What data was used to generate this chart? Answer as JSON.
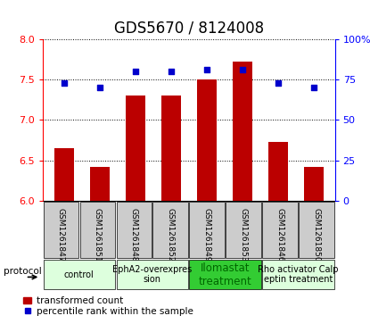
{
  "title": "GDS5670 / 8124008",
  "samples": [
    "GSM1261847",
    "GSM1261851",
    "GSM1261848",
    "GSM1261852",
    "GSM1261849",
    "GSM1261853",
    "GSM1261846",
    "GSM1261850"
  ],
  "transformed_counts": [
    6.65,
    6.42,
    7.3,
    7.3,
    7.5,
    7.72,
    6.73,
    6.42
  ],
  "percentile_ranks": [
    73,
    70,
    80,
    80,
    81,
    81,
    73,
    70
  ],
  "ylim_left": [
    6.0,
    8.0
  ],
  "ylim_right": [
    0,
    100
  ],
  "yticks_left": [
    6.0,
    6.5,
    7.0,
    7.5,
    8.0
  ],
  "yticks_right": [
    0,
    25,
    50,
    75,
    100
  ],
  "ytick_right_labels": [
    "0",
    "25",
    "50",
    "75",
    "100%"
  ],
  "bar_color": "#bb0000",
  "dot_color": "#0000cc",
  "groups": [
    {
      "label": "control",
      "indices": [
        0,
        1
      ],
      "color": "#ddffdd"
    },
    {
      "label": "EphA2-overexpres\nsion",
      "indices": [
        2,
        3
      ],
      "color": "#ddffdd"
    },
    {
      "label": "Ilomastat\ntreatment",
      "indices": [
        4,
        5
      ],
      "color": "#33cc33"
    },
    {
      "label": "Rho activator Calp\neptin treatment",
      "indices": [
        6,
        7
      ],
      "color": "#ddffdd"
    }
  ],
  "protocol_label": "protocol",
  "legend_bar_label": "transformed count",
  "legend_dot_label": "percentile rank within the sample",
  "title_fontsize": 12,
  "tick_fontsize": 8,
  "sample_label_fontsize": 6.5,
  "group_label_fontsize": 7,
  "legend_fontsize": 7.5
}
